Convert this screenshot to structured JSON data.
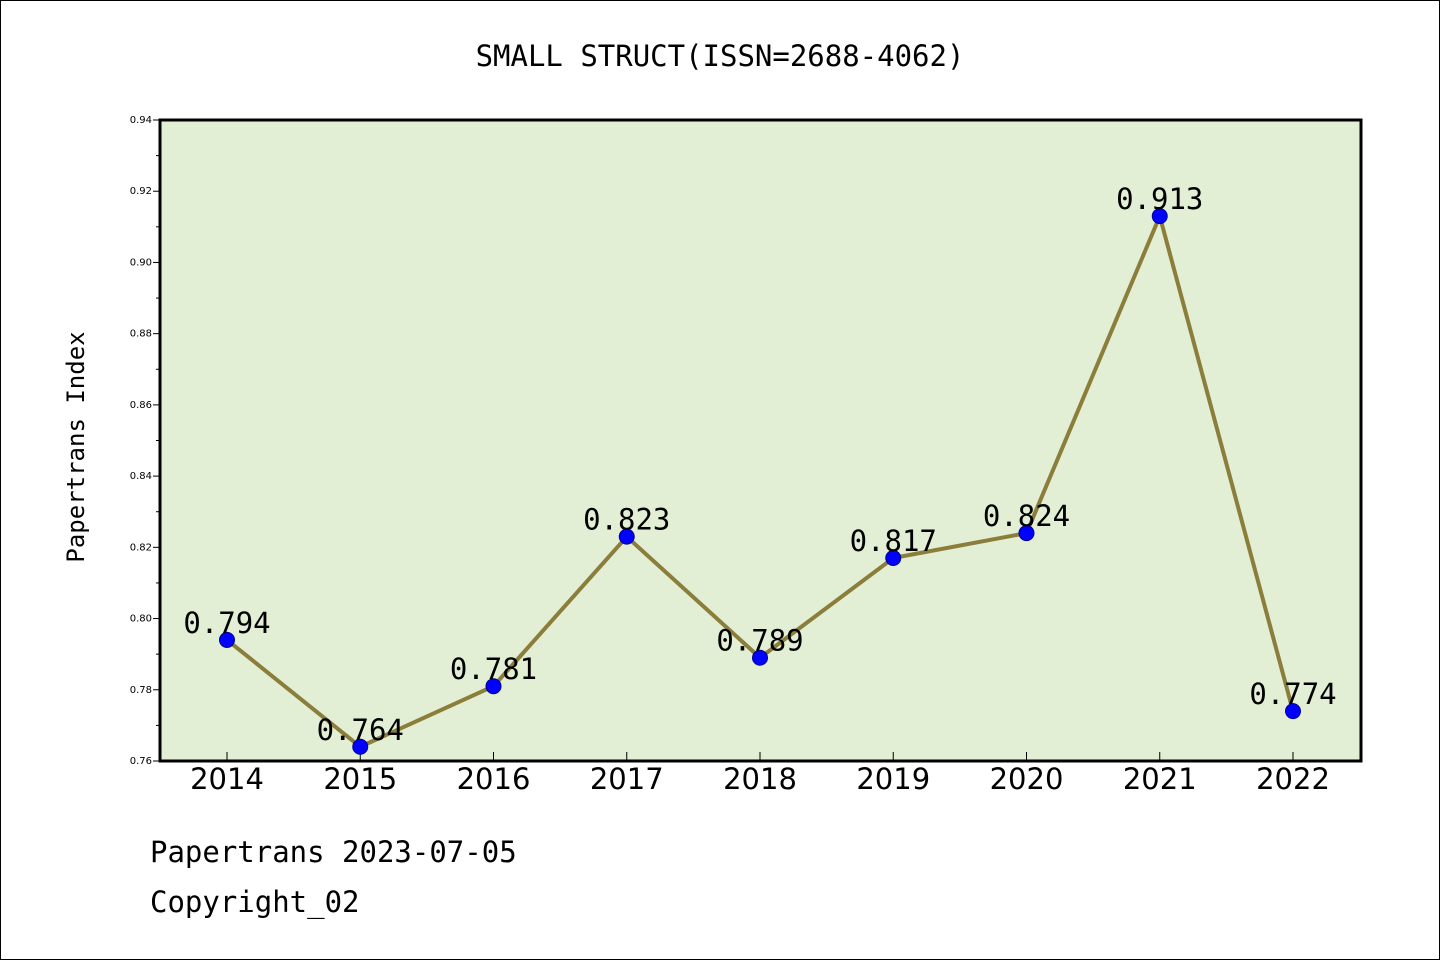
{
  "chart_data": {
    "type": "line",
    "title": "SMALL STRUCT(ISSN=2688-4062)",
    "xlabel": "",
    "ylabel": "Papertrans Index",
    "categories": [
      "2014",
      "2015",
      "2016",
      "2017",
      "2018",
      "2019",
      "2020",
      "2021",
      "2022"
    ],
    "series": [
      {
        "values": [
          0.794,
          0.764,
          0.781,
          0.823,
          0.789,
          0.817,
          0.824,
          0.913,
          0.774
        ],
        "data_labels": [
          "0.794",
          "0.764",
          "0.781",
          "0.823",
          "0.789",
          "0.817",
          "0.824",
          "0.913",
          "0.774"
        ]
      }
    ],
    "ylim": [
      0.76,
      0.94
    ],
    "yticks": [
      "0.76",
      "0.78",
      "0.80",
      "0.82",
      "0.84",
      "0.86",
      "0.88",
      "0.90",
      "0.92",
      "0.94"
    ],
    "grid": false,
    "colors": {
      "plot_background": "#e2efd5",
      "line": "#8b7d3a",
      "marker": "#0000ff"
    }
  },
  "footer": {
    "date_line": "Papertrans 2023-07-05",
    "copyright": "Copyright_02"
  }
}
